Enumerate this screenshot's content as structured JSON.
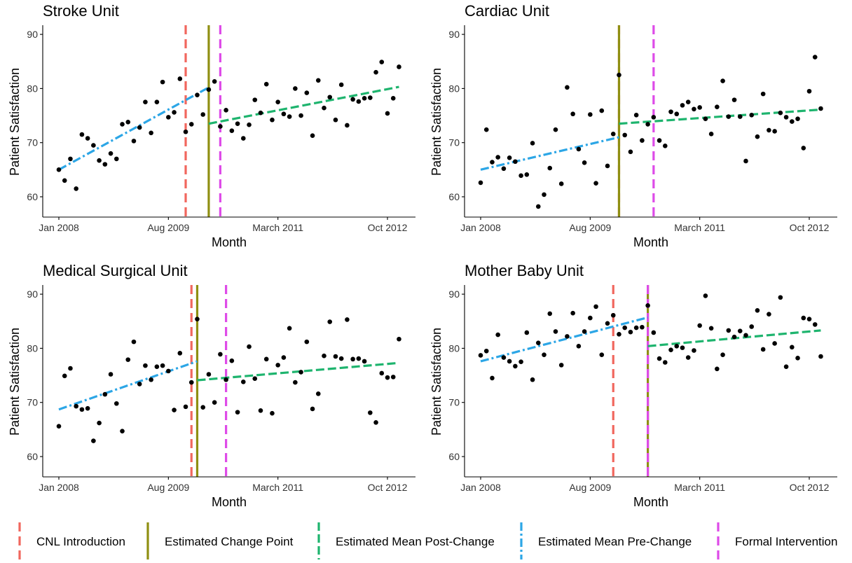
{
  "colors": {
    "cnl": "#F1675E",
    "change_point": "#8F8F12",
    "post": "#1EB46E",
    "pre": "#2CA6E6",
    "formal": "#DE4BE8",
    "points": "#000000",
    "axis": "#000000",
    "tick_text": "#333333"
  },
  "legend": {
    "cnl": "CNL Introduction",
    "change_point": "Estimated Change Point",
    "post": "Estimated Mean Post-Change",
    "pre": "Estimated Mean Pre-Change",
    "formal": "Formal Intervention"
  },
  "chart_data": [
    {
      "type": "scatter",
      "title": "Stroke Unit",
      "xlabel": "Month",
      "ylabel": "Patient Satisfaction",
      "x_ticks": [
        "Jan 2008",
        "Aug 2009",
        "March 2011",
        "Oct 2012"
      ],
      "y_ticks": [
        "60",
        "70",
        "80",
        "90"
      ],
      "ylim": [
        56.5,
        91.5
      ],
      "x": [
        "2008-01",
        "2008-02",
        "2008-03",
        "2008-04",
        "2008-05",
        "2008-06",
        "2008-07",
        "2008-08",
        "2008-09",
        "2008-10",
        "2008-11",
        "2008-12",
        "2009-01",
        "2009-02",
        "2009-03",
        "2009-04",
        "2009-05",
        "2009-06",
        "2009-07",
        "2009-08",
        "2009-09",
        "2009-10",
        "2009-11",
        "2009-12",
        "2010-01",
        "2010-02",
        "2010-03",
        "2010-04",
        "2010-05",
        "2010-06",
        "2010-07",
        "2010-08",
        "2010-09",
        "2010-10",
        "2010-11",
        "2010-12",
        "2011-01",
        "2011-02",
        "2011-03",
        "2011-04",
        "2011-05",
        "2011-06",
        "2011-07",
        "2011-08",
        "2011-09",
        "2011-10",
        "2011-11",
        "2011-12",
        "2012-01",
        "2012-02",
        "2012-03",
        "2012-04",
        "2012-05",
        "2012-06",
        "2012-07",
        "2012-08",
        "2012-09",
        "2012-10",
        "2012-11",
        "2012-12"
      ],
      "y": [
        65,
        63,
        67,
        61.5,
        71.5,
        70.8,
        69.5,
        66.7,
        66,
        68,
        67,
        73.4,
        73.8,
        70.3,
        72.8,
        77.5,
        71.8,
        77.5,
        81.2,
        74.7,
        75.6,
        81.8,
        72,
        73.4,
        78.8,
        75.2,
        79.8,
        81.3,
        73,
        76,
        72.2,
        73.5,
        70.8,
        73.3,
        77.9,
        75.5,
        80.8,
        74.2,
        77.5,
        75.3,
        74.8,
        80,
        75,
        79.2,
        71.3,
        81.5,
        76.4,
        78.4,
        74.2,
        80.7,
        73.2,
        78,
        77.6,
        78.2,
        78.3,
        83,
        84.9,
        75.4,
        78.2,
        84
      ],
      "cnl_date": "2009-11",
      "change_point": "2010-03",
      "formal_intervention": "2010-05",
      "pre_trend": {
        "start": "2008-01",
        "end": "2010-03",
        "y_start": 65,
        "y_end": 80.2
      },
      "post_trend": {
        "start": "2010-03",
        "end": "2012-12",
        "y_start": 73.5,
        "y_end": 80.3
      }
    },
    {
      "type": "scatter",
      "title": "Cardiac Unit",
      "xlabel": "Month",
      "ylabel": "Patient Satisfaction",
      "x_ticks": [
        "Jan 2008",
        "Aug 2009",
        "March 2011",
        "Oct 2012"
      ],
      "y_ticks": [
        "60",
        "70",
        "80",
        "90"
      ],
      "ylim": [
        56.5,
        91.5
      ],
      "x": [
        "2008-01",
        "2008-02",
        "2008-03",
        "2008-04",
        "2008-05",
        "2008-06",
        "2008-07",
        "2008-08",
        "2008-09",
        "2008-10",
        "2008-11",
        "2008-12",
        "2009-01",
        "2009-02",
        "2009-03",
        "2009-04",
        "2009-05",
        "2009-06",
        "2009-07",
        "2009-08",
        "2009-09",
        "2009-10",
        "2009-11",
        "2009-12",
        "2010-01",
        "2010-02",
        "2010-03",
        "2010-04",
        "2010-05",
        "2010-06",
        "2010-07",
        "2010-08",
        "2010-09",
        "2010-10",
        "2010-11",
        "2010-12",
        "2011-01",
        "2011-02",
        "2011-03",
        "2011-04",
        "2011-05",
        "2011-06",
        "2011-07",
        "2011-08",
        "2011-09",
        "2011-10",
        "2011-11",
        "2011-12",
        "2012-01",
        "2012-02",
        "2012-03",
        "2012-04",
        "2012-05",
        "2012-06",
        "2012-07",
        "2012-08",
        "2012-09",
        "2012-10",
        "2012-11",
        "2012-12"
      ],
      "y": [
        62.6,
        72.4,
        66.4,
        67.3,
        65.2,
        67.2,
        66.5,
        63.9,
        64.1,
        69.9,
        58.2,
        60.4,
        65.3,
        72.4,
        62.4,
        80.2,
        75.3,
        68.8,
        66.3,
        75.2,
        62.5,
        75.9,
        65.7,
        71.6,
        82.5,
        71.4,
        68.3,
        75.1,
        70.4,
        73.4,
        74.7,
        70.4,
        69.4,
        75.7,
        75.3,
        76.9,
        77.5,
        76.2,
        76.5,
        74.4,
        71.6,
        76.6,
        81.4,
        74.8,
        77.9,
        74.8,
        66.6,
        75.1,
        71.1,
        79,
        72.3,
        72.1,
        75.5,
        74.7,
        73.9,
        74.4,
        69,
        79.5,
        85.8,
        76.3
      ],
      "cnl_date": "2010-01",
      "change_point": "2010-01",
      "formal_intervention": "2010-07",
      "pre_trend": {
        "start": "2008-01",
        "end": "2010-01",
        "y_start": 65,
        "y_end": 71
      },
      "post_trend": {
        "start": "2010-01",
        "end": "2012-12",
        "y_start": 73.5,
        "y_end": 76.1
      }
    },
    {
      "type": "scatter",
      "title": "Medical Surgical Unit",
      "xlabel": "Month",
      "ylabel": "Patient Satisfaction",
      "x_ticks": [
        "Jan 2008",
        "Aug 2009",
        "March 2011",
        "Oct 2012"
      ],
      "y_ticks": [
        "60",
        "70",
        "80",
        "90"
      ],
      "ylim": [
        56.5,
        91.5
      ],
      "x": [
        "2008-01",
        "2008-02",
        "2008-03",
        "2008-04",
        "2008-05",
        "2008-06",
        "2008-07",
        "2008-08",
        "2008-09",
        "2008-10",
        "2008-11",
        "2008-12",
        "2009-01",
        "2009-02",
        "2009-03",
        "2009-04",
        "2009-05",
        "2009-06",
        "2009-07",
        "2009-08",
        "2009-09",
        "2009-10",
        "2009-11",
        "2009-12",
        "2010-01",
        "2010-02",
        "2010-03",
        "2010-04",
        "2010-05",
        "2010-06",
        "2010-07",
        "2010-08",
        "2010-09",
        "2010-10",
        "2010-11",
        "2010-12",
        "2011-01",
        "2011-02",
        "2011-03",
        "2011-04",
        "2011-05",
        "2011-06",
        "2011-07",
        "2011-08",
        "2011-09",
        "2011-10",
        "2011-11",
        "2011-12",
        "2012-01",
        "2012-02",
        "2012-03",
        "2012-04",
        "2012-05",
        "2012-06",
        "2012-07",
        "2012-08",
        "2012-09",
        "2012-10",
        "2012-11",
        "2012-12"
      ],
      "y": [
        65.6,
        74.9,
        76.3,
        69.3,
        68.7,
        68.9,
        62.9,
        66.2,
        71.5,
        75.2,
        69.8,
        64.7,
        77.9,
        81.2,
        73.4,
        76.8,
        74.2,
        76.6,
        76.8,
        75.8,
        68.6,
        79.1,
        69.2,
        73.7,
        85.4,
        69.1,
        75.2,
        70,
        78.9,
        74.2,
        77.7,
        68.2,
        73.8,
        80.3,
        74.4,
        68.5,
        78,
        68,
        76.9,
        78.3,
        83.7,
        73.7,
        75.6,
        81.2,
        68.8,
        71.6,
        78.6,
        84.9,
        78.5,
        78.1,
        85.3,
        78,
        78.1,
        77.6,
        68.1,
        66.3,
        75.4,
        74.6,
        74.7,
        81.7
      ],
      "cnl_date": "2009-12",
      "change_point": "2010-01",
      "formal_intervention": "2010-06",
      "pre_trend": {
        "start": "2008-01",
        "end": "2010-01",
        "y_start": 68.7,
        "y_end": 77.6
      },
      "post_trend": {
        "start": "2010-01",
        "end": "2012-12",
        "y_start": 74.1,
        "y_end": 77.3
      }
    },
    {
      "type": "scatter",
      "title": "Mother Baby Unit",
      "xlabel": "Month",
      "ylabel": "Patient Satisfaction",
      "x_ticks": [
        "Jan 2008",
        "Aug 2009",
        "March 2011",
        "Oct 2012"
      ],
      "y_ticks": [
        "60",
        "70",
        "80",
        "90"
      ],
      "ylim": [
        56.5,
        91.5
      ],
      "x": [
        "2008-01",
        "2008-02",
        "2008-03",
        "2008-04",
        "2008-05",
        "2008-06",
        "2008-07",
        "2008-08",
        "2008-09",
        "2008-10",
        "2008-11",
        "2008-12",
        "2009-01",
        "2009-02",
        "2009-03",
        "2009-04",
        "2009-05",
        "2009-06",
        "2009-07",
        "2009-08",
        "2009-09",
        "2009-10",
        "2009-11",
        "2009-12",
        "2010-01",
        "2010-02",
        "2010-03",
        "2010-04",
        "2010-05",
        "2010-06",
        "2010-07",
        "2010-08",
        "2010-09",
        "2010-10",
        "2010-11",
        "2010-12",
        "2011-01",
        "2011-02",
        "2011-03",
        "2011-04",
        "2011-05",
        "2011-06",
        "2011-07",
        "2011-08",
        "2011-09",
        "2011-10",
        "2011-11",
        "2011-12",
        "2012-01",
        "2012-02",
        "2012-03",
        "2012-04",
        "2012-05",
        "2012-06",
        "2012-07",
        "2012-08",
        "2012-09",
        "2012-10",
        "2012-11",
        "2012-12"
      ],
      "y": [
        78.7,
        79.5,
        74.5,
        82.5,
        78.3,
        77.6,
        76.7,
        77.5,
        82.9,
        74.2,
        81,
        78.8,
        86.4,
        83.1,
        76.9,
        82.2,
        86.5,
        80.4,
        83.1,
        85.6,
        87.7,
        78.8,
        84.6,
        86.1,
        82.6,
        83.8,
        83,
        83.8,
        83.9,
        87.9,
        82.9,
        78.1,
        77.4,
        79.7,
        80.4,
        80.1,
        78.3,
        79.6,
        84.2,
        89.7,
        83.7,
        76.2,
        78.8,
        83.3,
        82.1,
        83.2,
        82.4,
        84,
        87,
        79.8,
        86.3,
        80.9,
        89.4,
        76.6,
        80.2,
        78.2,
        85.6,
        85.4,
        84.4,
        78.5
      ],
      "cnl_date": "2009-12",
      "change_point": "2010-06",
      "formal_intervention": "2010-06",
      "pre_trend": {
        "start": "2008-01",
        "end": "2010-06",
        "y_start": 77.6,
        "y_end": 85.7
      },
      "post_trend": {
        "start": "2010-06",
        "end": "2012-12",
        "y_start": 80.4,
        "y_end": 83.3
      }
    }
  ]
}
